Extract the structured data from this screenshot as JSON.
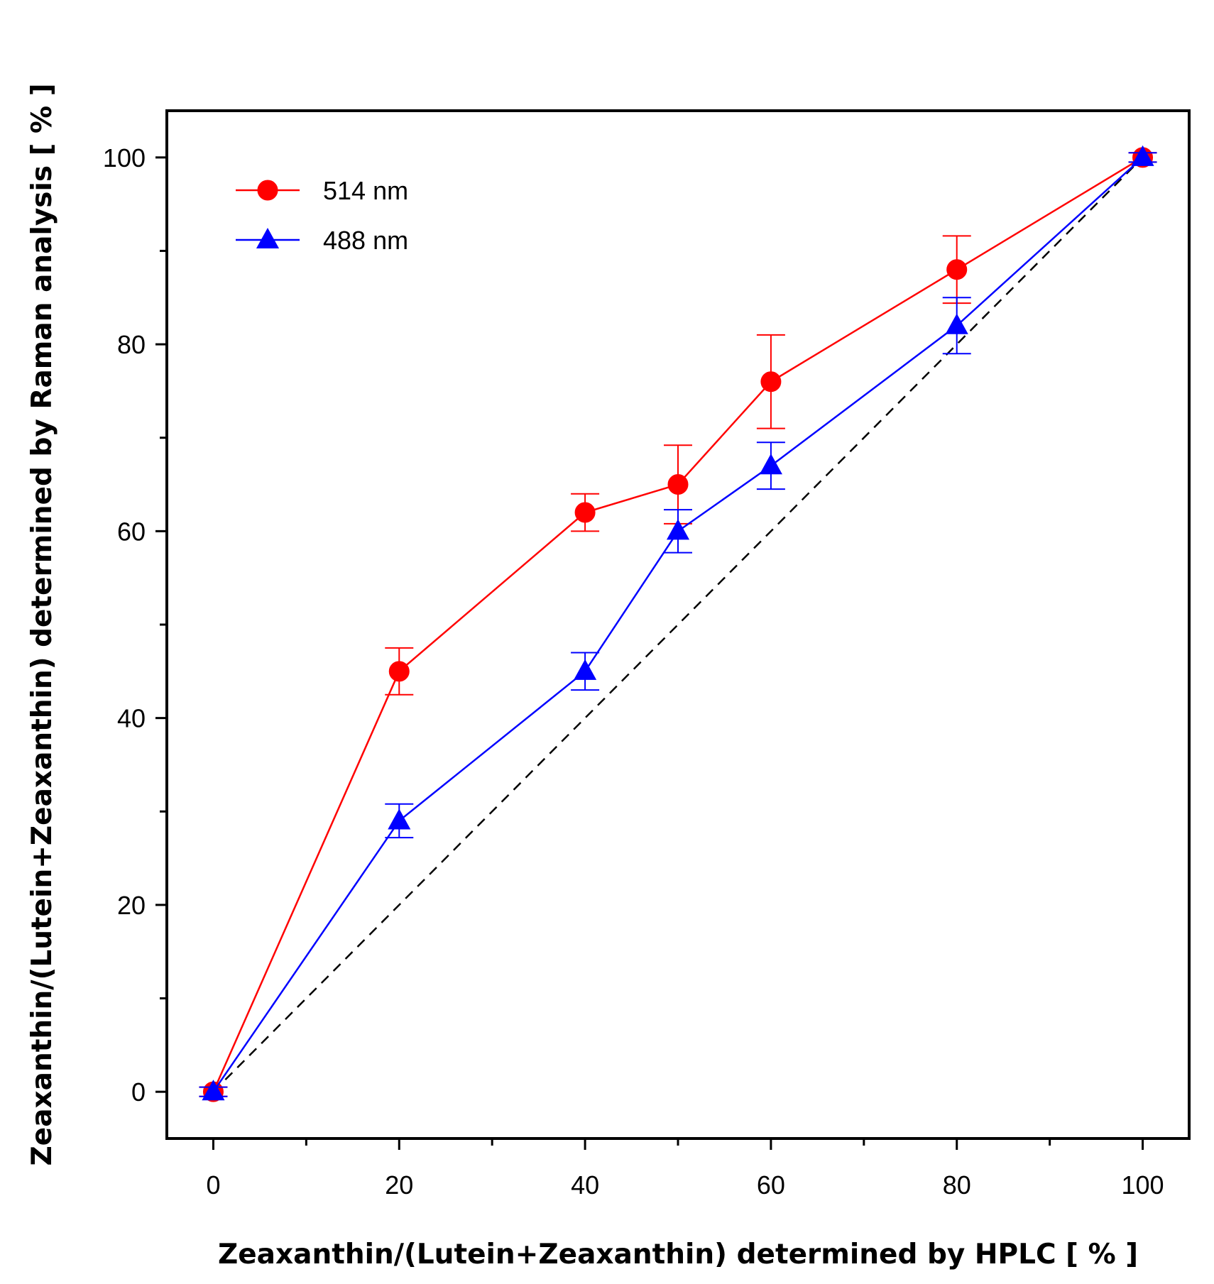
{
  "chart_data": {
    "type": "line",
    "title": "",
    "xlabel": "Zeaxanthin/(Lutein+Zeaxanthin) determined by HPLC [ % ]",
    "ylabel": "Zeaxanthin/(Lutein+Zeaxanthin) determined by Raman analysis [ % ]",
    "xlim": [
      -5,
      105
    ],
    "ylim": [
      -5,
      105
    ],
    "x_ticks": [
      0,
      20,
      40,
      60,
      80,
      100
    ],
    "x_tick_labels": [
      "0",
      "20",
      "40",
      "60",
      "80",
      "100"
    ],
    "y_ticks": [
      0,
      20,
      40,
      60,
      80,
      100
    ],
    "y_tick_labels": [
      "0",
      "20",
      "40",
      "60",
      "80",
      "100"
    ],
    "grid": false,
    "legend_position": "top-left",
    "reference_line": {
      "style": "dashed",
      "color": "#000000",
      "x": [
        0,
        100
      ],
      "y": [
        0,
        100
      ]
    },
    "series": [
      {
        "name": "514 nm",
        "marker": "circle",
        "color": "#ff0000",
        "x": [
          0,
          20,
          40,
          50,
          60,
          80,
          100
        ],
        "y": [
          0,
          45,
          62,
          65,
          76,
          88,
          100
        ],
        "error": [
          0.5,
          2.5,
          2.0,
          4.2,
          5.0,
          3.6,
          0.5
        ]
      },
      {
        "name": "488 nm",
        "marker": "triangle",
        "color": "#0000ff",
        "x": [
          0,
          20,
          40,
          50,
          60,
          80,
          100
        ],
        "y": [
          0,
          29,
          45,
          60,
          67,
          82,
          100
        ],
        "error": [
          0.5,
          1.8,
          2.0,
          2.3,
          2.5,
          3.0,
          0.5
        ]
      }
    ]
  }
}
